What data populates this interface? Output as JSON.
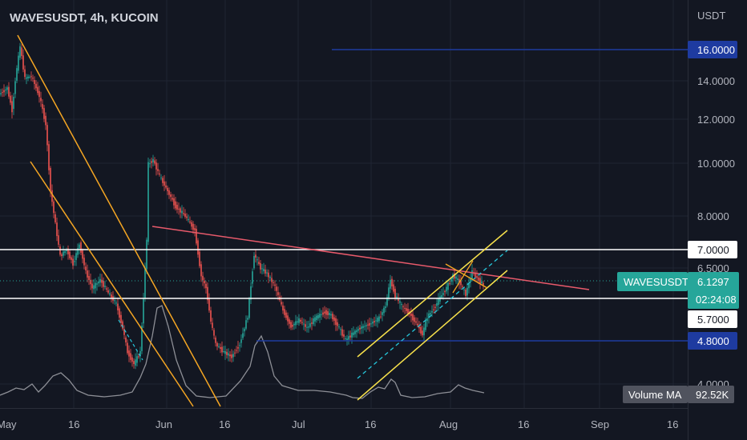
{
  "header": {
    "title": "WAVESUSDT, 4h, KUCOIN"
  },
  "chart_data": {
    "type": "candlestick",
    "symbol": "WAVESUSDT",
    "interval": "4h",
    "exchange": "KUCOIN",
    "currency_label": "USDT",
    "y_ticks": [
      "14.0000",
      "12.0000",
      "10.0000",
      "8.0000",
      "6.5000",
      "4.0000"
    ],
    "x_ticks": [
      "May",
      "16",
      "Jun",
      "16",
      "Jul",
      "16",
      "Aug",
      "16",
      "Sep",
      "16"
    ],
    "price_levels": [
      {
        "label": "16.0000",
        "value": 16.0,
        "color": "#1e3ba0"
      },
      {
        "label": "7.0000",
        "value": 7.0,
        "color": "#ffffff"
      },
      {
        "label": "5.7000",
        "value": 5.7,
        "color": "#ffffff"
      },
      {
        "label": "4.8000",
        "value": 4.8,
        "color": "#1e3ba0"
      }
    ],
    "last_price": {
      "symbol": "WAVESUSDT",
      "value": "6.1297",
      "countdown": "02:24:08",
      "color": "#26a69a"
    },
    "volume_ma": {
      "label": "Volume MA",
      "value": "92.52K"
    },
    "colors": {
      "up": "#26a69a",
      "down": "#ef5350",
      "trendline_orange": "#f5a623",
      "channel_yellow": "#f7e14b",
      "channel_dash": "#26c6da",
      "resistance_red": "#e85a6b",
      "background": "#131722"
    }
  }
}
